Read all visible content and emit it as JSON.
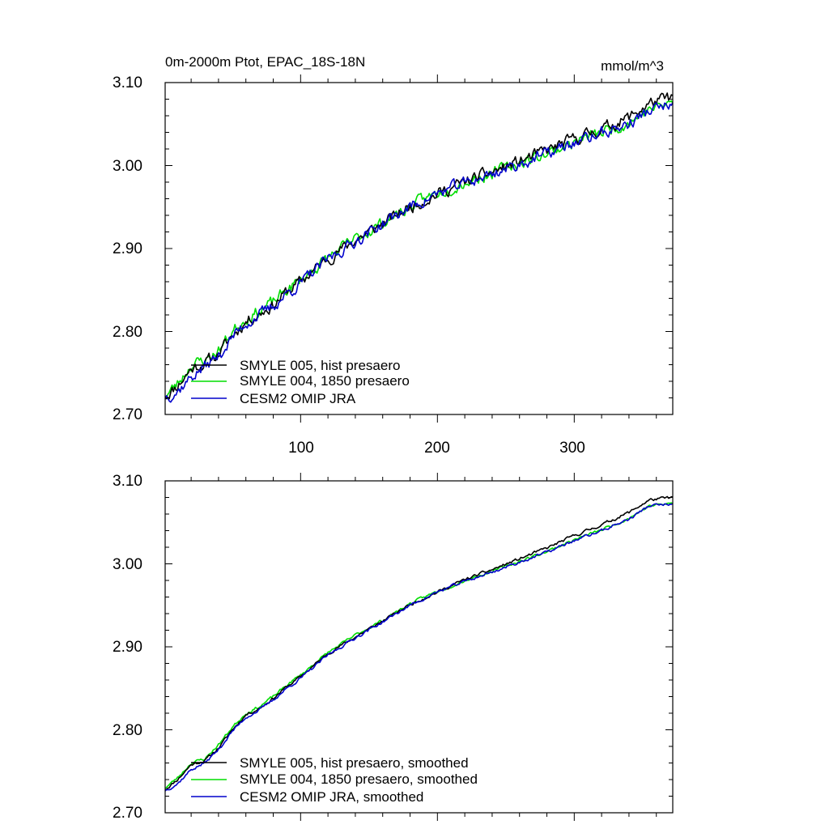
{
  "chart_data": [
    {
      "type": "line",
      "title": "0m-2000m Ptot, EPAC_18S-18N",
      "units": "mmol/m^3",
      "xlim": [
        1,
        372
      ],
      "ylim": [
        2.7,
        3.1
      ],
      "xticks": [
        100,
        200,
        300
      ],
      "xtick_labels": [
        "100",
        "200",
        "300"
      ],
      "yticks": [
        2.7,
        2.8,
        2.9,
        3.0,
        3.1
      ],
      "ytick_labels": [
        "2.70",
        "2.80",
        "2.90",
        "3.00",
        "3.10"
      ],
      "legend_position": "bottom-left",
      "anchors_x": [
        1,
        10,
        20,
        30,
        40,
        50,
        60,
        70,
        80,
        90,
        100,
        120,
        140,
        160,
        180,
        200,
        220,
        240,
        260,
        280,
        300,
        320,
        340,
        355,
        372
      ],
      "series": [
        {
          "name": "SMYLE 005, hist presaero",
          "color": "#000000",
          "noise": 0.006,
          "seed": 11,
          "values": [
            2.722,
            2.735,
            2.755,
            2.762,
            2.773,
            2.795,
            2.812,
            2.822,
            2.832,
            2.848,
            2.86,
            2.888,
            2.91,
            2.93,
            2.95,
            2.966,
            2.98,
            2.992,
            3.005,
            3.018,
            3.032,
            3.044,
            3.058,
            3.075,
            3.082
          ]
        },
        {
          "name": "SMYLE 004, 1850 presaero",
          "color": "#00dd00",
          "noise": 0.006,
          "seed": 23,
          "values": [
            2.722,
            2.737,
            2.76,
            2.765,
            2.777,
            2.8,
            2.816,
            2.825,
            2.835,
            2.85,
            2.862,
            2.889,
            2.911,
            2.931,
            2.951,
            2.967,
            2.98,
            2.991,
            3.003,
            3.015,
            3.028,
            3.04,
            3.052,
            3.068,
            3.076
          ]
        },
        {
          "name": "CESM2 OMIP JRA",
          "color": "#0000cc",
          "noise": 0.006,
          "seed": 37,
          "values": [
            2.722,
            2.728,
            2.745,
            2.758,
            2.77,
            2.793,
            2.81,
            2.82,
            2.83,
            2.846,
            2.858,
            2.887,
            2.909,
            2.93,
            2.95,
            2.966,
            2.979,
            2.99,
            3.002,
            3.014,
            3.027,
            3.039,
            3.05,
            3.066,
            3.074
          ]
        }
      ]
    },
    {
      "type": "line",
      "title": "",
      "units": "",
      "xlim": [
        1,
        372
      ],
      "ylim": [
        2.7,
        3.1
      ],
      "xticks": [
        100,
        200,
        300
      ],
      "xtick_labels": [],
      "yticks": [
        2.7,
        2.8,
        2.9,
        3.0,
        3.1
      ],
      "ytick_labels": [
        "2.70",
        "2.80",
        "2.90",
        "3.00",
        "3.10"
      ],
      "legend_position": "bottom-left",
      "anchors_x": [
        1,
        10,
        20,
        30,
        40,
        50,
        60,
        70,
        80,
        90,
        100,
        120,
        140,
        160,
        180,
        200,
        220,
        240,
        260,
        280,
        300,
        320,
        340,
        355,
        372
      ],
      "series": [
        {
          "name": "SMYLE 005, hist presaero, smoothed",
          "color": "#000000",
          "noise": 0.0015,
          "seed": 11,
          "values": [
            2.728,
            2.74,
            2.758,
            2.763,
            2.778,
            2.8,
            2.818,
            2.826,
            2.838,
            2.852,
            2.864,
            2.892,
            2.912,
            2.931,
            2.951,
            2.966,
            2.981,
            2.993,
            3.006,
            3.019,
            3.034,
            3.047,
            3.062,
            3.077,
            3.08
          ]
        },
        {
          "name": "SMYLE 004, 1850 presaero, smoothed",
          "color": "#00dd00",
          "noise": 0.0015,
          "seed": 23,
          "values": [
            2.73,
            2.742,
            2.76,
            2.765,
            2.782,
            2.803,
            2.82,
            2.828,
            2.84,
            2.854,
            2.866,
            2.893,
            2.914,
            2.932,
            2.952,
            2.967,
            2.98,
            2.991,
            3.003,
            3.015,
            3.029,
            3.041,
            3.055,
            3.07,
            3.073
          ]
        },
        {
          "name": "CESM2 OMIP JRA, smoothed",
          "color": "#0000cc",
          "noise": 0.0015,
          "seed": 37,
          "values": [
            2.727,
            2.735,
            2.752,
            2.76,
            2.776,
            2.798,
            2.815,
            2.824,
            2.836,
            2.85,
            2.862,
            2.89,
            2.911,
            2.93,
            2.95,
            2.966,
            2.979,
            2.99,
            3.002,
            3.014,
            3.028,
            3.04,
            3.054,
            3.07,
            3.072
          ]
        }
      ]
    }
  ]
}
